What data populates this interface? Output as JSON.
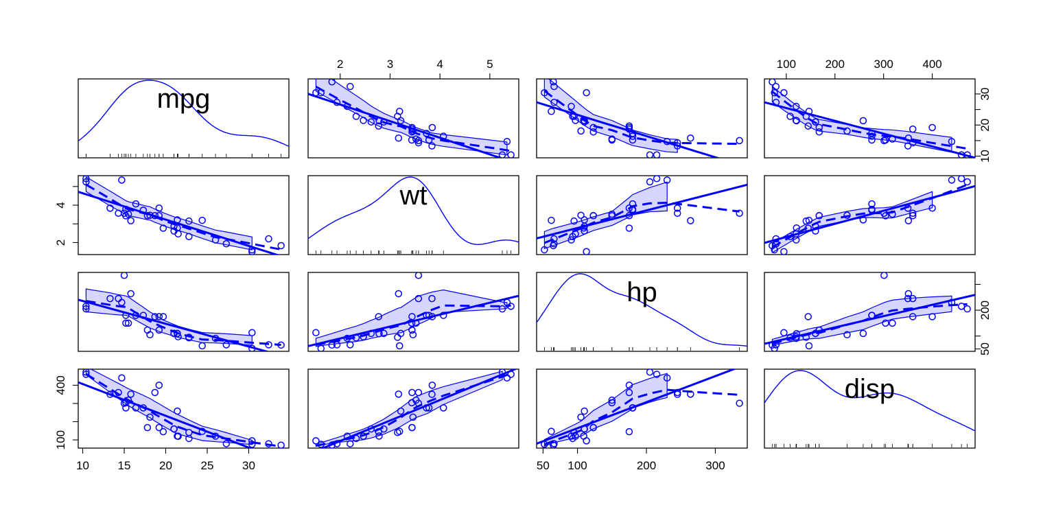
{
  "chart_data": {
    "type": "scatter",
    "subtype": "scatterplot-matrix",
    "variables": [
      "mpg",
      "wt",
      "hp",
      "disp"
    ],
    "data": {
      "mpg": [
        21.0,
        21.0,
        22.8,
        21.4,
        18.7,
        18.1,
        14.3,
        24.4,
        22.8,
        19.2,
        17.8,
        16.4,
        17.3,
        15.2,
        10.4,
        10.4,
        14.7,
        32.4,
        30.4,
        33.9,
        21.5,
        15.5,
        15.2,
        13.3,
        19.2,
        27.3,
        26.0,
        30.4,
        15.8,
        19.7,
        15.0,
        21.4
      ],
      "wt": [
        2.62,
        2.875,
        2.32,
        3.215,
        3.44,
        3.46,
        3.57,
        3.19,
        3.15,
        3.44,
        3.44,
        4.07,
        3.73,
        3.78,
        5.25,
        5.424,
        5.345,
        2.2,
        1.615,
        1.835,
        2.465,
        3.52,
        3.435,
        3.84,
        3.845,
        1.935,
        2.14,
        1.513,
        3.17,
        2.77,
        3.57,
        2.78
      ],
      "hp": [
        110,
        110,
        93,
        110,
        175,
        105,
        245,
        62,
        95,
        123,
        123,
        180,
        180,
        180,
        205,
        215,
        230,
        66,
        52,
        65,
        97,
        150,
        150,
        245,
        175,
        66,
        91,
        113,
        264,
        175,
        335,
        109
      ],
      "disp": [
        160,
        160,
        108,
        258,
        360,
        225,
        360,
        146.7,
        140.8,
        167.6,
        167.6,
        275.8,
        275.8,
        275.8,
        472,
        460,
        440,
        78.7,
        75.7,
        71.1,
        120.1,
        318,
        304,
        350,
        400,
        79,
        120.3,
        95.1,
        351,
        145,
        301,
        121
      ]
    },
    "axis_ticks": {
      "mpg": [
        10,
        15,
        20,
        25,
        30
      ],
      "wt": [
        2,
        3,
        4,
        5
      ],
      "hp": [
        50,
        100,
        200,
        300
      ],
      "disp": [
        100,
        200,
        300,
        400
      ]
    },
    "side_ticks": {
      "mpg": [
        10,
        20,
        30
      ],
      "wt": [
        2,
        4
      ],
      "hp": [
        50,
        200
      ],
      "disp": [
        100,
        400
      ]
    },
    "ranges": {
      "mpg": [
        10.4,
        33.9
      ],
      "wt": [
        1.513,
        5.424
      ],
      "hp": [
        52,
        335
      ],
      "disp": [
        71.1,
        472
      ]
    },
    "diagonal": "density",
    "overlays": [
      "linear-fit",
      "smoother-dashed",
      "spread-band"
    ],
    "color": "#0000ff"
  }
}
